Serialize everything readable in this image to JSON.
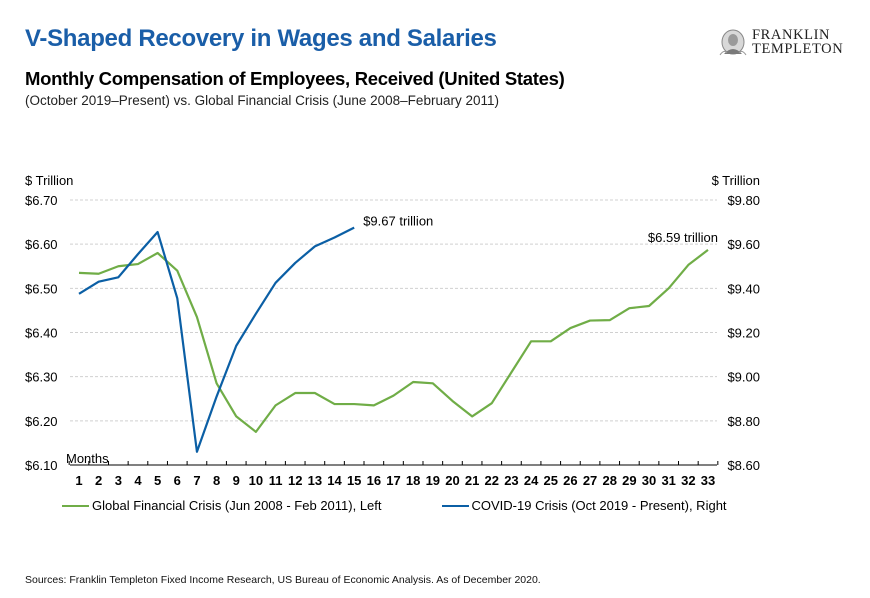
{
  "header": {
    "title": "V-Shaped Recovery in Wages and Salaries",
    "subtitle": "Monthly Compensation of Employees, Received (United States)",
    "subsubtitle": "(October 2019–Present) vs. Global Financial Crisis (June 2008–February 2011)"
  },
  "logo": {
    "line1": "FRANKLIN",
    "line2": "TEMPLETON",
    "icon": "portrait-medallion-icon"
  },
  "colors": {
    "title": "#1a5ea8",
    "gfc_series": "#70ad47",
    "covid_series": "#0b5fa5",
    "gridline": "#d0d0d0"
  },
  "footer": {
    "source": "Sources: Franklin Templeton Fixed Income Research, US Bureau of Economic Analysis. As of December 2020."
  },
  "chart_data": {
    "type": "line",
    "title": "Monthly Compensation of Employees, Received (United States)",
    "xlabel": "Months",
    "ylabel_left": "$ Trillion",
    "ylabel_right": "$ Trillion",
    "x": [
      1,
      2,
      3,
      4,
      5,
      6,
      7,
      8,
      9,
      10,
      11,
      12,
      13,
      14,
      15,
      16,
      17,
      18,
      19,
      20,
      21,
      22,
      23,
      24,
      25,
      26,
      27,
      28,
      29,
      30,
      31,
      32,
      33
    ],
    "x_tick_labels": [
      "1",
      "2",
      "3",
      "4",
      "5",
      "6",
      "7",
      "8",
      "9",
      "10",
      "11",
      "12",
      "13",
      "14",
      "15",
      "16",
      "17",
      "18",
      "19",
      "20",
      "21",
      "22",
      "23",
      "24",
      "25",
      "26",
      "27",
      "28",
      "29",
      "30",
      "31",
      "32",
      "33"
    ],
    "ylim_left": [
      6.1,
      6.7
    ],
    "ylim_right": [
      8.6,
      9.8
    ],
    "yticks_left": [
      6.1,
      6.2,
      6.3,
      6.4,
      6.5,
      6.6,
      6.7
    ],
    "ytick_labels_left": [
      "$6.10",
      "$6.20",
      "$6.30",
      "$6.40",
      "$6.50",
      "$6.60",
      "$6.70"
    ],
    "yticks_right": [
      8.6,
      8.8,
      9.0,
      9.2,
      9.4,
      9.6,
      9.8
    ],
    "ytick_labels_right": [
      "$8.60",
      "$8.80",
      "$9.00",
      "$9.20",
      "$9.40",
      "$9.60",
      "$9.80"
    ],
    "grid": "horizontal-dashed",
    "legend_position": "bottom",
    "series": [
      {
        "name": "Global Financial Crisis (Jun 2008 - Feb 2011), Left",
        "axis": "left",
        "color": "#70ad47",
        "values": [
          6.535,
          6.533,
          6.55,
          6.555,
          6.58,
          6.54,
          6.435,
          6.285,
          6.21,
          6.175,
          6.235,
          6.263,
          6.263,
          6.238,
          6.238,
          6.235,
          6.257,
          6.288,
          6.285,
          6.245,
          6.21,
          6.24,
          6.31,
          6.38,
          6.38,
          6.41,
          6.427,
          6.428,
          6.455,
          6.46,
          6.5,
          6.553,
          6.587
        ]
      },
      {
        "name": "COVID-19 Crisis (Oct 2019 - Present), Right",
        "axis": "right",
        "color": "#0b5fa5",
        "values": [
          9.375,
          9.43,
          9.45,
          9.555,
          9.655,
          9.355,
          8.66,
          8.91,
          9.14,
          9.285,
          9.425,
          9.515,
          9.59,
          9.63,
          9.675
        ]
      }
    ],
    "annotations": [
      {
        "text": "$9.67 trillion",
        "series": 1,
        "x": 15
      },
      {
        "text": "$6.59 trillion",
        "series": 0,
        "x": 33
      }
    ]
  }
}
